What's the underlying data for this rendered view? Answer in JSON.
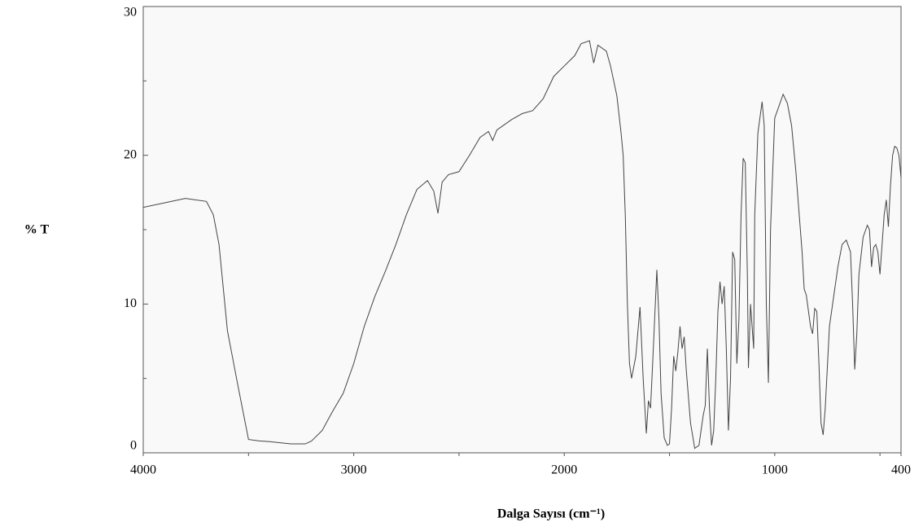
{
  "chart_data": {
    "type": "line",
    "ylabel": "% T",
    "xlabel": "Dalga Sayısı (cm⁻¹)",
    "xlim": [
      4000,
      400
    ],
    "xticks": [
      4000,
      3000,
      2000,
      1000,
      400
    ],
    "xminorticks": [
      3500,
      2500,
      1500,
      500
    ],
    "ylim": [
      0,
      30
    ],
    "yticks": [
      0,
      10,
      20,
      30
    ],
    "yminorticks": [
      5,
      15,
      25
    ],
    "series": [
      {
        "color": "#444444",
        "x": [
          4000,
          3900,
          3800,
          3700,
          3667,
          3640,
          3600,
          3550,
          3500,
          3450,
          3400,
          3300,
          3230,
          3200,
          3150,
          3100,
          3050,
          3020,
          3000,
          2970,
          2950,
          2900,
          2850,
          2800,
          2750,
          2700,
          2650,
          2620,
          2600,
          2580,
          2550,
          2500,
          2450,
          2400,
          2360,
          2340,
          2320,
          2250,
          2200,
          2150,
          2100,
          2050,
          2000,
          1950,
          1920,
          1880,
          1860,
          1840,
          1800,
          1780,
          1750,
          1730,
          1720,
          1710,
          1700,
          1690,
          1680,
          1660,
          1640,
          1625,
          1610,
          1600,
          1590,
          1580,
          1560,
          1550,
          1540,
          1525,
          1510,
          1500,
          1490,
          1480,
          1470,
          1460,
          1450,
          1440,
          1430,
          1420,
          1400,
          1380,
          1360,
          1340,
          1330,
          1320,
          1310,
          1300,
          1290,
          1280,
          1270,
          1260,
          1250,
          1240,
          1230,
          1220,
          1210,
          1200,
          1190,
          1180,
          1170,
          1160,
          1150,
          1140,
          1130,
          1125,
          1115,
          1100,
          1095,
          1080,
          1060,
          1050,
          1040,
          1030,
          1020,
          1000,
          960,
          940,
          920,
          900,
          870,
          860,
          850,
          830,
          820,
          810,
          800,
          790,
          780,
          770,
          760,
          740,
          720,
          700,
          680,
          660,
          640,
          630,
          620,
          610,
          600,
          580,
          560,
          550,
          540,
          530,
          520,
          510,
          500,
          490,
          480,
          470,
          460,
          450,
          440,
          430,
          420,
          410,
          400
        ],
        "values": [
          16.5,
          16.8,
          17.1,
          16.9,
          16,
          14,
          8.2,
          4.5,
          0.9,
          0.8,
          0.75,
          0.6,
          0.6,
          0.8,
          1.5,
          2.8,
          4.0,
          5.2,
          6,
          7.5,
          8.5,
          10.5,
          12.2,
          14,
          16,
          17.7,
          18.3,
          17.6,
          16.1,
          18.2,
          18.7,
          18.9,
          20,
          21.2,
          21.6,
          21.0,
          21.7,
          22.4,
          22.8,
          23.0,
          23.8,
          25.3,
          26,
          26.7,
          27.5,
          27.7,
          26.2,
          27.4,
          27.0,
          26,
          24,
          21.5,
          20,
          16,
          10,
          6,
          5.0,
          6.5,
          9.8,
          5,
          1.3,
          3.5,
          3.0,
          6,
          12.3,
          9,
          4,
          1,
          0.5,
          0.6,
          3,
          6.5,
          5.5,
          6.8,
          8.5,
          7,
          7.8,
          5.5,
          2,
          0.3,
          0.5,
          2.5,
          3.2,
          7.0,
          3,
          0.5,
          1.5,
          5,
          9.5,
          11.5,
          10,
          11.2,
          7,
          1.5,
          5,
          13.5,
          13,
          6,
          9,
          16,
          19.8,
          19.5,
          12,
          5.7,
          10,
          7,
          16,
          21.5,
          23.6,
          22,
          10,
          4.7,
          15,
          22.5,
          24.1,
          23.5,
          22,
          19,
          13.5,
          11,
          10.6,
          8.5,
          8,
          9.7,
          9.5,
          6,
          2,
          1.2,
          3,
          8.5,
          10.5,
          12.5,
          14,
          14.3,
          13.5,
          10,
          5.6,
          8,
          12,
          14.5,
          15.3,
          15,
          12.5,
          13.8,
          14,
          13.5,
          12,
          14,
          16,
          17,
          15.2,
          18,
          20,
          20.6,
          20.5,
          20,
          18.5
        ]
      }
    ]
  }
}
